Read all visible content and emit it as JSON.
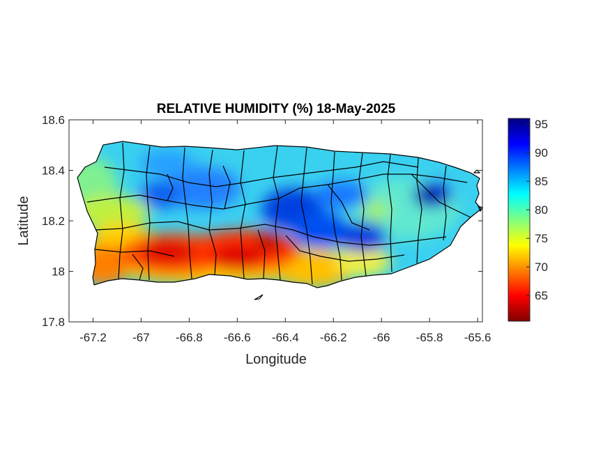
{
  "title": "RELATIVE HUMIDITY (%) 18-May-2025",
  "xlabel": "Longitude",
  "ylabel": "Latitude",
  "x_ticks": [
    {
      "value": -67.2,
      "label": "-67.2"
    },
    {
      "value": -67,
      "label": "-67"
    },
    {
      "value": -66.8,
      "label": "-66.8"
    },
    {
      "value": -66.6,
      "label": "-66.6"
    },
    {
      "value": -66.4,
      "label": "-66.4"
    },
    {
      "value": -66.2,
      "label": "-66.2"
    },
    {
      "value": -66,
      "label": "-66"
    },
    {
      "value": -65.8,
      "label": "-65.8"
    },
    {
      "value": -65.6,
      "label": "-65.6"
    }
  ],
  "y_ticks": [
    {
      "value": 18.6,
      "label": "18.6"
    },
    {
      "value": 18.4,
      "label": "18.4"
    },
    {
      "value": 18.2,
      "label": "18.2"
    },
    {
      "value": 18,
      "label": "18"
    },
    {
      "value": 17.8,
      "label": "17.8"
    }
  ],
  "colorbar": {
    "ticks": [
      {
        "value": 95,
        "label": "95"
      },
      {
        "value": 90,
        "label": "90"
      },
      {
        "value": 85,
        "label": "85"
      },
      {
        "value": 80,
        "label": "80"
      },
      {
        "value": 75,
        "label": "75"
      },
      {
        "value": 70,
        "label": "70"
      },
      {
        "value": 65,
        "label": "65"
      }
    ],
    "range": [
      60.5,
      96
    ],
    "colormap": "jet"
  },
  "chart_data": {
    "type": "heatmap",
    "title": "RELATIVE HUMIDITY (%) 18-May-2025",
    "xlabel": "Longitude",
    "ylabel": "Latitude",
    "xlim": [
      -67.3,
      -65.58
    ],
    "ylim": [
      17.8,
      18.6
    ],
    "units": "%",
    "grid": false,
    "colormap": "jet",
    "color_range": [
      60.5,
      96
    ],
    "region": "Puerto Rico with municipality boundaries",
    "field_samples": [
      {
        "lon": -66.55,
        "lat": 18.03,
        "value": 62
      },
      {
        "lon": -66.9,
        "lat": 18.04,
        "value": 65
      },
      {
        "lon": -67.1,
        "lat": 18.0,
        "value": 70
      },
      {
        "lon": -66.25,
        "lat": 18.0,
        "value": 73
      },
      {
        "lon": -67.15,
        "lat": 18.2,
        "value": 77
      },
      {
        "lon": -66.85,
        "lat": 18.3,
        "value": 85
      },
      {
        "lon": -66.3,
        "lat": 18.22,
        "value": 88
      },
      {
        "lon": -66.05,
        "lat": 18.1,
        "value": 89
      },
      {
        "lon": -65.79,
        "lat": 18.29,
        "value": 95
      },
      {
        "lon": -66.1,
        "lat": 18.2,
        "value": 79
      },
      {
        "lon": -65.65,
        "lat": 18.3,
        "value": 80
      }
    ]
  }
}
